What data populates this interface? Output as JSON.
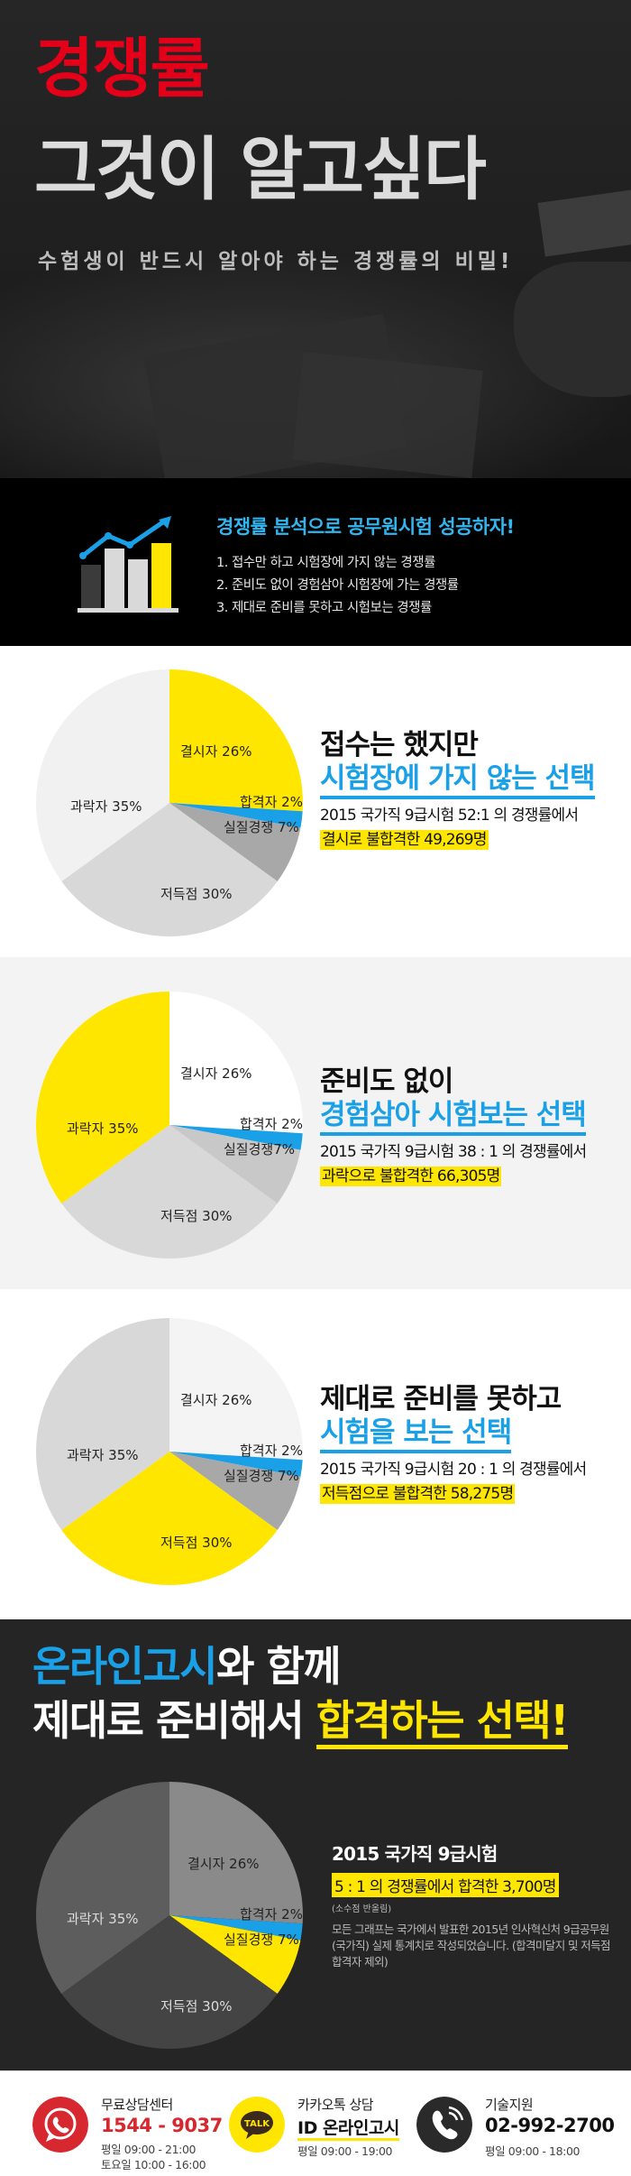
{
  "hero": {
    "title_red": "경쟁률",
    "title_main": "그것이 알고싶다",
    "subtitle": "수험생이 반드시 알아야 하는 경쟁률의 비밀!"
  },
  "intro": {
    "title": "경쟁률 분석으로 공무원시험 성공하자!",
    "items": [
      "1. 접수만 하고 시험장에 가지 않는 경쟁률",
      "2. 준비도 없이 경험삼아 시험장에 가는 경쟁률",
      "3. 제대로 준비를 못하고 시험보는 경쟁률"
    ]
  },
  "section1": {
    "line1": "접수는 했지만",
    "line2": "시험장에 가지 않는 선택",
    "desc": "2015 국가직 9급시험 52:1 의 경쟁률에서",
    "highlight": "결시로 불합격한 49,269명"
  },
  "section2": {
    "line1": "준비도 없이",
    "line2": "경험삼아 시험보는 선택",
    "desc": "2015 국가직 9급시험  38 : 1 의 경쟁률에서",
    "highlight": "과락으로 불합격한 66,305명"
  },
  "section3": {
    "line1": "제대로 준비를 못하고",
    "line2": "시험을 보는 선택",
    "desc": "2015 국가직 9급시험  20 : 1 의 경쟁률에서",
    "highlight": "저득점으로 불합격한 58,275명"
  },
  "section4": {
    "heading_blue": "온라인고시",
    "heading_rest": "와 함께",
    "heading2_pre": "제대로 준비해서 ",
    "heading2_yellow": "합격하는 선택!",
    "exam": "2015 국가직 9급시험",
    "highlight": "5 : 1 의 경쟁률에서 합격한 3,700명",
    "note": "(소수점 반올림)",
    "desc": "모든 그래프는 국가에서 발표한 2015년 인사혁신처 9급공무원(국가직) 실제 통계치로 작성되었습니다. (합격미달지 및 저득점 합격자 제외)"
  },
  "chart_data": [
    {
      "type": "pie",
      "categories": [
        "결시자",
        "합격자",
        "실질경쟁",
        "저득점",
        "과락자"
      ],
      "values": [
        26,
        2,
        7,
        30,
        35
      ],
      "highlight": "결시자",
      "colors": {
        "highlight": "#ffe600",
        "pass": "#1aa0e6"
      }
    },
    {
      "type": "pie",
      "categories": [
        "결시자",
        "합격자",
        "실질경쟁",
        "저득점",
        "과락자"
      ],
      "values": [
        26,
        2,
        7,
        30,
        35
      ],
      "highlight": "과락자",
      "colors": {
        "highlight": "#ffe600",
        "pass": "#1aa0e6"
      }
    },
    {
      "type": "pie",
      "categories": [
        "결시자",
        "합격자",
        "실질경쟁",
        "저득점",
        "과락자"
      ],
      "values": [
        26,
        2,
        7,
        30,
        35
      ],
      "highlight": "저득점",
      "colors": {
        "highlight": "#ffe600",
        "pass": "#1aa0e6"
      }
    },
    {
      "type": "pie",
      "categories": [
        "결시자",
        "합격자",
        "실질경쟁",
        "저득점",
        "과락자"
      ],
      "values": [
        26,
        2,
        7,
        30,
        35
      ],
      "highlight": "실질경쟁",
      "colors": {
        "highlight": "#ffe600",
        "pass": "#1aa0e6"
      }
    }
  ],
  "pie_labels": {
    "absent": "결시자 26%",
    "pass": "합격자 2%",
    "real": "실질경쟁 7%",
    "real_tight": "실질경쟁7%",
    "low": "저득점 30%",
    "fail": "과락자 35%"
  },
  "footer": {
    "c1_label": "무료상담센터",
    "c1_phone": "1544 - 9037",
    "c1_h1": "평일 09:00 - 21:00",
    "c1_h2": "토요일 10:00 - 16:00",
    "c2_label": "카카오톡 상담",
    "c2_id": "ID 온라인고시",
    "c2_h": "평일 09:00 - 19:00",
    "c2_talk": "TALK",
    "c3_label": "기술지원",
    "c3_phone": "02-992-2700",
    "c3_h": "평일 09:00 - 18:00"
  }
}
